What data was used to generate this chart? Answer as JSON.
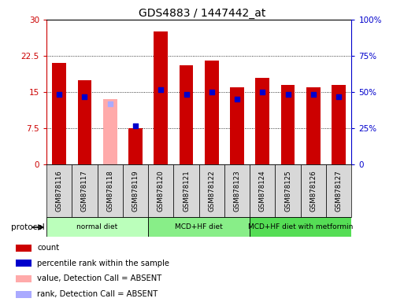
{
  "title": "GDS4883 / 1447442_at",
  "samples": [
    "GSM878116",
    "GSM878117",
    "GSM878118",
    "GSM878119",
    "GSM878120",
    "GSM878121",
    "GSM878122",
    "GSM878123",
    "GSM878124",
    "GSM878125",
    "GSM878126",
    "GSM878127"
  ],
  "count_values": [
    21.0,
    17.5,
    null,
    7.5,
    27.5,
    20.5,
    21.5,
    16.0,
    18.0,
    16.5,
    16.0,
    16.5
  ],
  "absent_value": [
    null,
    null,
    13.5,
    null,
    null,
    null,
    null,
    null,
    null,
    null,
    null,
    null
  ],
  "percentile_values": [
    14.5,
    14.0,
    null,
    8.0,
    15.5,
    14.5,
    15.0,
    13.5,
    15.0,
    14.5,
    14.5,
    14.0
  ],
  "absent_percentile": [
    null,
    null,
    12.5,
    null,
    null,
    null,
    null,
    null,
    null,
    null,
    null,
    null
  ],
  "groups": [
    {
      "label": "normal diet",
      "start": 0,
      "end": 3,
      "color": "#bbffbb"
    },
    {
      "label": "MCD+HF diet",
      "start": 4,
      "end": 7,
      "color": "#88ee88"
    },
    {
      "label": "MCD+HF diet with metformin",
      "start": 8,
      "end": 11,
      "color": "#55dd55"
    }
  ],
  "ylim_left": [
    0,
    30
  ],
  "ylim_right": [
    0,
    100
  ],
  "yticks_left": [
    0,
    7.5,
    15,
    22.5,
    30
  ],
  "yticks_right": [
    0,
    25,
    50,
    75,
    100
  ],
  "ytick_labels_left": [
    "0",
    "7.5",
    "15",
    "22.5",
    "30"
  ],
  "ytick_labels_right": [
    "0",
    "25%",
    "50%",
    "75%",
    "100%"
  ],
  "bar_color": "#cc0000",
  "absent_bar_color": "#ffaaaa",
  "dot_color": "#0000cc",
  "absent_dot_color": "#aaaaff",
  "bar_width": 0.55,
  "dot_size": 18,
  "legend_items": [
    {
      "label": "count",
      "color": "#cc0000"
    },
    {
      "label": "percentile rank within the sample",
      "color": "#0000cc"
    },
    {
      "label": "value, Detection Call = ABSENT",
      "color": "#ffaaaa"
    },
    {
      "label": "rank, Detection Call = ABSENT",
      "color": "#aaaaff"
    }
  ]
}
